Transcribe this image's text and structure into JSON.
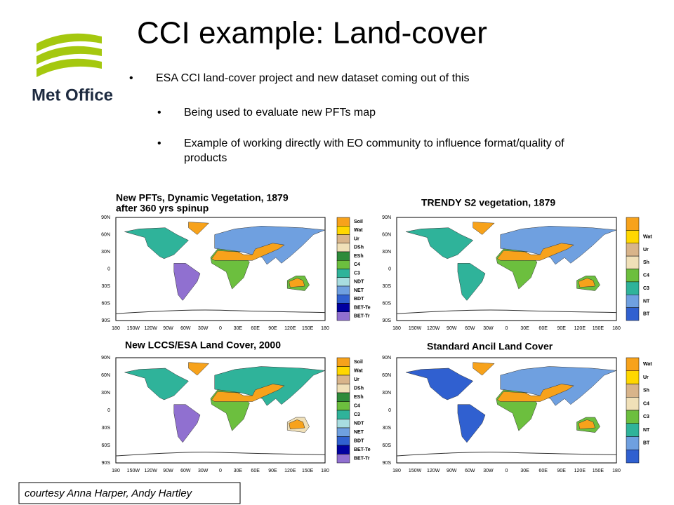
{
  "header": {
    "title": "CCI example: Land-cover",
    "logo": "Met Office"
  },
  "bullets": [
    {
      "level": 1,
      "text": "ESA CCI land-cover project and new dataset coming out of this"
    },
    {
      "level": 2,
      "text": "Being used to evaluate new PFTs map"
    },
    {
      "level": 2,
      "text": "Example of working directly with EO community to influence format/quality of products"
    }
  ],
  "panels": [
    {
      "title": [
        "New PFTs, Dynamic Vegetation, 1879",
        "after 360 yrs spinup"
      ],
      "legend": [
        {
          "label": "Soil",
          "color": "#f7a21b"
        },
        {
          "label": "Wat",
          "color": "#ffd700"
        },
        {
          "label": "Ur",
          "color": "#d8b48a"
        },
        {
          "label": "DSh",
          "color": "#f0e0b8"
        },
        {
          "label": "ESh",
          "color": "#2e8b3a"
        },
        {
          "label": "C4",
          "color": "#6cbf3e"
        },
        {
          "label": "C3",
          "color": "#2fb39a"
        },
        {
          "label": "NDT",
          "color": "#a8dde0"
        },
        {
          "label": "NET",
          "color": "#6fa0e0"
        },
        {
          "label": "BDT",
          "color": "#3060d0"
        },
        {
          "label": "BET-Te",
          "color": "#0000a0"
        },
        {
          "label": "BET-Tr",
          "color": "#9070d0"
        }
      ]
    },
    {
      "title": [
        "TRENDY S2 vegetation, 1879"
      ],
      "legend": [
        {
          "label": null,
          "color": "#f7a21b"
        },
        {
          "label": "Wat",
          "color": "#ffd700"
        },
        {
          "label": "Ur",
          "color": "#d8b48a"
        },
        {
          "label": "Sh",
          "color": "#f0e0b8"
        },
        {
          "label": "C4",
          "color": "#6cbf3e"
        },
        {
          "label": "C3",
          "color": "#2fb39a"
        },
        {
          "label": "NT",
          "color": "#6fa0e0"
        },
        {
          "label": "BT",
          "color": "#3060d0"
        }
      ]
    },
    {
      "title": [
        "New LCCS/ESA Land Cover, 2000"
      ],
      "legend": [
        {
          "label": "Soil",
          "color": "#f7a21b"
        },
        {
          "label": "Wat",
          "color": "#ffd700"
        },
        {
          "label": "Ur",
          "color": "#d8b48a"
        },
        {
          "label": "DSh",
          "color": "#f0e0b8"
        },
        {
          "label": "ESh",
          "color": "#2e8b3a"
        },
        {
          "label": "C4",
          "color": "#6cbf3e"
        },
        {
          "label": "C3",
          "color": "#2fb39a"
        },
        {
          "label": "NDT",
          "color": "#a8dde0"
        },
        {
          "label": "NET",
          "color": "#6fa0e0"
        },
        {
          "label": "BDT",
          "color": "#3060d0"
        },
        {
          "label": "BET-Te",
          "color": "#0000a0"
        },
        {
          "label": "BET-Tr",
          "color": "#9070d0"
        }
      ]
    },
    {
      "title": [
        "Standard Ancil Land Cover"
      ],
      "legend": [
        {
          "label": "Wat",
          "color": "#f7a21b"
        },
        {
          "label": "Ur",
          "color": "#ffd700"
        },
        {
          "label": "Sh",
          "color": "#d8b48a"
        },
        {
          "label": "C4",
          "color": "#f0e0b8"
        },
        {
          "label": "C3",
          "color": "#6cbf3e"
        },
        {
          "label": "NT",
          "color": "#2fb39a"
        },
        {
          "label": "BT",
          "color": "#6fa0e0"
        },
        {
          "label": null,
          "color": "#3060d0"
        }
      ]
    }
  ],
  "lat_labels": [
    "90N",
    "60N",
    "30N",
    "0",
    "30S",
    "60S",
    "90S"
  ],
  "lon_labels": [
    "180",
    "150W",
    "120W",
    "90W",
    "60W",
    "30W",
    "0",
    "30E",
    "60E",
    "90E",
    "120E",
    "150E",
    "180"
  ],
  "credit": "courtesy Anna Harper, Andy Hartley"
}
